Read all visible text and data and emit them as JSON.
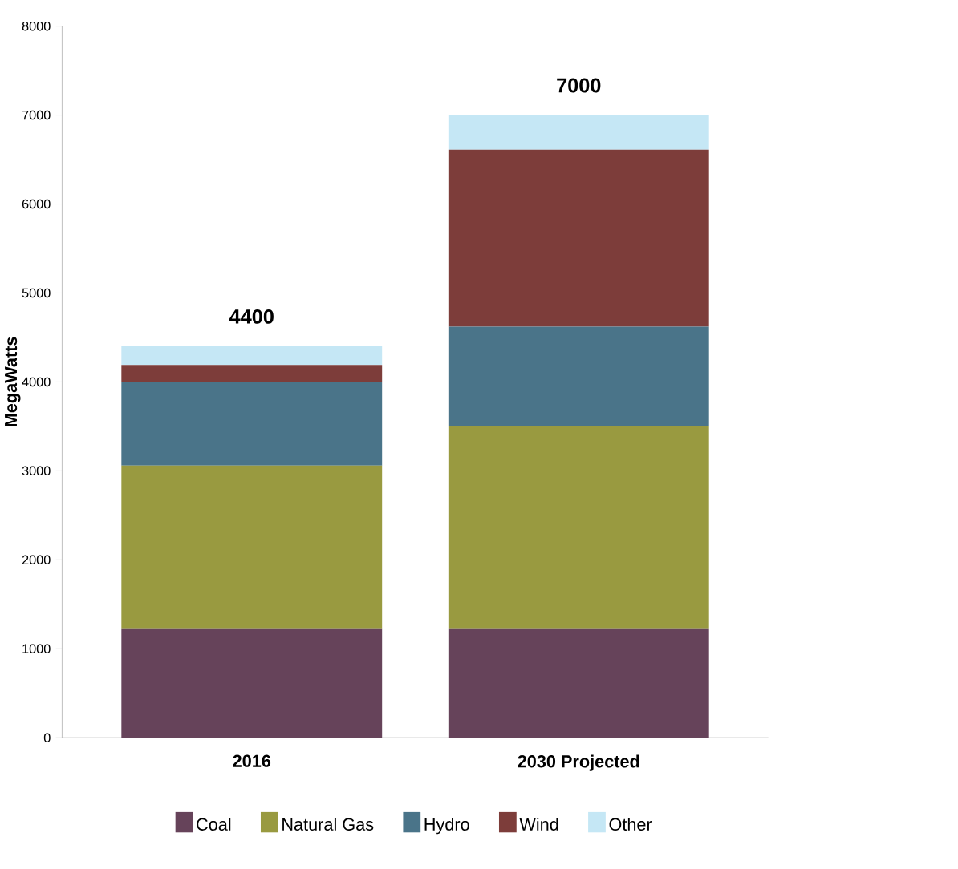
{
  "chart_data": {
    "type": "bar",
    "stacked": true,
    "ylabel": "MegaWatts",
    "categories": [
      "2016",
      "2030 Projected"
    ],
    "series": [
      {
        "name": "Coal",
        "color": "#66435a",
        "values": [
          1230,
          1230
        ]
      },
      {
        "name": "Natural Gas",
        "color": "#999a40",
        "values": [
          1830,
          2270
        ]
      },
      {
        "name": "Hydro",
        "color": "#4a7489",
        "values": [
          940,
          1120
        ]
      },
      {
        "name": "Wind",
        "color": "#7d3d3a",
        "values": [
          190,
          1990
        ]
      },
      {
        "name": "Other",
        "color": "#c5e7f5",
        "values": [
          210,
          390
        ]
      }
    ],
    "totals": [
      "4400",
      "7000"
    ],
    "ylim": [
      0,
      8000
    ],
    "yticks": [
      0,
      1000,
      2000,
      3000,
      4000,
      5000,
      6000,
      7000,
      8000
    ],
    "legend": "bottom"
  }
}
